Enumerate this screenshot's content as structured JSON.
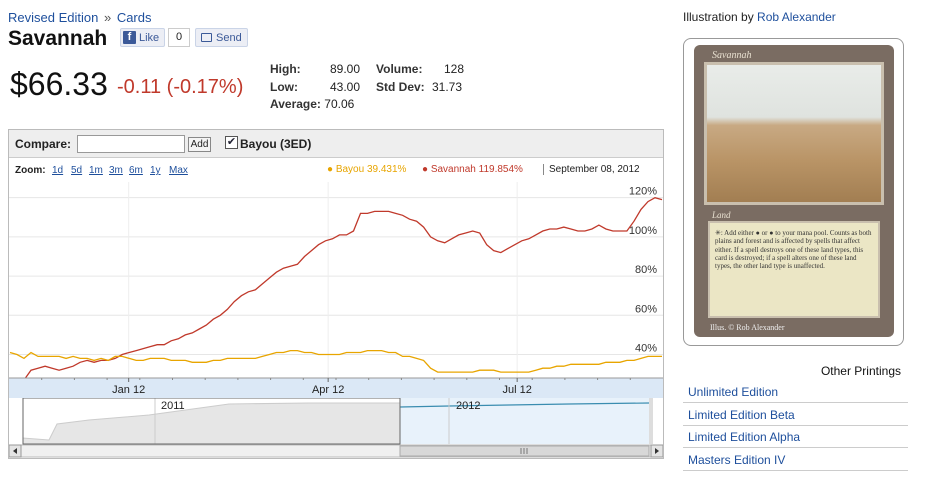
{
  "breadcrumb": {
    "edition": "Revised Edition",
    "separator": "»",
    "section": "Cards"
  },
  "card": {
    "name": "Savannah"
  },
  "social": {
    "like_label": "Like",
    "like_count": "0",
    "send_label": "Send"
  },
  "price": {
    "current": "$66.33",
    "change": "-0.11 (-0.17%)"
  },
  "stats": {
    "high_label": "High:",
    "high": "89.00",
    "low_label": "Low:",
    "low": "43.00",
    "average_label": "Average:",
    "average": "70.06",
    "volume_label": "Volume:",
    "volume": "128",
    "stddev_label": "Std Dev:",
    "stddev": "31.73"
  },
  "compare": {
    "label": "Compare:",
    "input_value": "",
    "add_label": "Add",
    "checkbox_checked": true,
    "checkbox_label": "Bayou (3ED)"
  },
  "zoom": {
    "label": "Zoom:",
    "options": [
      "1d",
      "5d",
      "1m",
      "3m",
      "6m",
      "1y",
      "Max"
    ]
  },
  "legend": {
    "bayou": "Bayou 39.431%",
    "savannah": "Savannah 119.854%",
    "date": "September 08, 2012"
  },
  "colors": {
    "savannah": "#c0392b",
    "bayou": "#e8a500",
    "accent": "#1e4f9c",
    "navigator": "#3a8db0"
  },
  "chart_data": {
    "type": "line",
    "y_ticks": [
      "40%",
      "60%",
      "80%",
      "100%",
      "120%"
    ],
    "y_range": [
      28,
      128
    ],
    "x_ticks": [
      "Jan 12",
      "Apr 12",
      "Jul 12"
    ],
    "nav_labels": [
      "2011",
      "2012"
    ],
    "series": [
      {
        "name": "Savannah",
        "values": [
          26,
          25,
          27,
          32,
          33,
          34,
          33,
          32,
          33,
          34,
          36,
          37,
          36,
          37,
          37,
          38,
          40,
          41,
          42,
          43,
          44,
          45,
          45,
          47,
          48,
          50,
          51,
          53,
          55,
          58,
          60,
          63,
          67,
          70,
          72,
          73,
          76,
          79,
          82,
          84,
          85,
          86,
          90,
          93,
          96,
          98,
          99,
          101,
          101,
          103,
          112,
          112,
          113,
          113,
          113,
          112,
          111,
          109,
          108,
          105,
          100,
          98,
          97,
          99,
          101,
          102,
          103,
          102,
          96,
          93,
          92,
          94,
          96,
          98,
          99,
          101,
          103,
          104,
          104,
          105,
          104,
          103,
          103,
          104,
          106,
          104,
          103,
          103,
          103,
          108,
          114,
          118,
          120,
          119
        ]
      },
      {
        "name": "Bayou",
        "values": [
          41,
          40,
          38,
          41,
          39,
          39,
          39,
          39,
          38,
          39,
          38,
          38,
          37,
          38,
          37,
          39,
          39,
          38,
          37,
          37,
          38,
          38,
          38,
          37,
          37,
          37,
          36,
          36,
          36,
          37,
          37,
          38,
          38,
          38,
          38,
          38,
          39,
          40,
          41,
          41,
          42,
          42,
          41,
          41,
          40,
          40,
          40,
          40,
          41,
          41,
          41,
          42,
          42,
          42,
          41,
          41,
          39,
          39,
          38,
          37,
          33,
          31,
          31,
          31,
          31,
          31,
          31,
          32,
          32,
          32,
          31,
          31,
          31,
          31,
          31,
          32,
          33,
          33,
          34,
          34,
          35,
          35,
          35,
          35,
          35,
          36,
          36,
          36,
          37,
          37,
          38,
          39,
          39,
          39
        ]
      }
    ]
  },
  "illustration": {
    "label": "Illustration by",
    "artist": "Rob Alexander"
  },
  "card_image": {
    "name": "Savannah",
    "type": "Land",
    "rules": "✳: Add either ● or ● to your mana pool. Counts as both plains and forest and is affected by spells that affect either. If a spell destroys one of these land types, this card is destroyed; if a spell alters one of these land types, the other land type is unaffected.",
    "illus": "Illus. © Rob Alexander"
  },
  "other_printings": {
    "title": "Other Printings",
    "items": [
      "Unlimited Edition",
      "Limited Edition Beta",
      "Limited Edition Alpha",
      "Masters Edition IV"
    ]
  }
}
